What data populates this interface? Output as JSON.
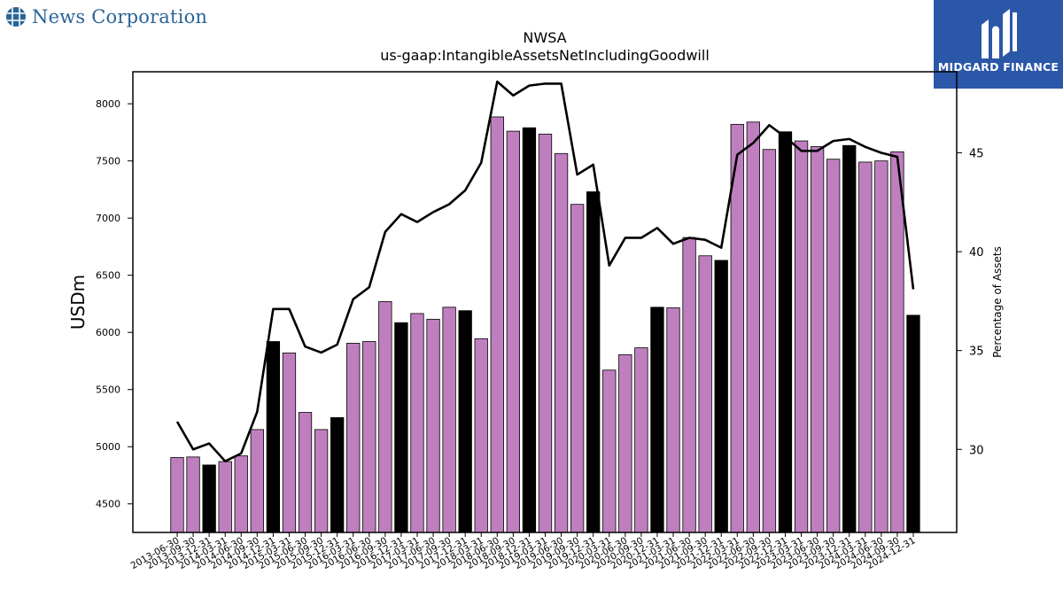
{
  "header": {
    "left_logo_text": "News Corporation",
    "left_logo_icon": "globe-grid-icon",
    "right_logo_text": "MIDGARD FINANCE",
    "right_logo_icon": "midgard-monogram-icon"
  },
  "chart_data": {
    "type": "bar",
    "title": "NWSA",
    "subtitle": "us-gaap:IntangibleAssetsNetIncludingGoodwill",
    "ylabel": "USDm",
    "y2label": "Percentage of Assets",
    "ylim": [
      4250,
      8280
    ],
    "y2lim": [
      25.8,
      49.1
    ],
    "yticks": [
      4500,
      5000,
      5500,
      6000,
      6500,
      7000,
      7500,
      8000
    ],
    "y2ticks": [
      30,
      35,
      40,
      45
    ],
    "categories": [
      "2013-06-30",
      "2013-09-30",
      "2013-12-31",
      "2014-03-31",
      "2014-06-30",
      "2014-09-30",
      "2014-12-31",
      "2015-03-31",
      "2015-06-30",
      "2015-09-30",
      "2015-12-31",
      "2016-03-31",
      "2016-06-30",
      "2016-09-30",
      "2016-12-31",
      "2017-03-31",
      "2017-06-30",
      "2017-09-30",
      "2017-12-31",
      "2018-03-31",
      "2018-06-30",
      "2018-09-30",
      "2018-12-31",
      "2019-03-31",
      "2019-06-30",
      "2019-09-30",
      "2019-12-31",
      "2020-03-31",
      "2020-06-30",
      "2020-09-30",
      "2020-12-31",
      "2021-03-31",
      "2021-06-30",
      "2021-09-30",
      "2021-12-31",
      "2022-03-31",
      "2022-06-30",
      "2022-09-30",
      "2022-12-31",
      "2023-03-31",
      "2023-06-30",
      "2023-09-30",
      "2023-12-31",
      "2024-03-31",
      "2024-06-30",
      "2024-09-30",
      "2024-12-31"
    ],
    "series": [
      {
        "values": [
          4905,
          4910,
          4840,
          4870,
          4920,
          5150,
          5920,
          5820,
          5300,
          5150,
          5255,
          5905,
          5920,
          6270,
          6085,
          6165,
          6115,
          6220,
          6190,
          5945,
          7885,
          7760,
          7790,
          7735,
          7565,
          7120,
          7230,
          5670,
          5805,
          5865,
          6220,
          6215,
          6830,
          6670,
          6630,
          7820,
          7840,
          7600,
          7755,
          7675,
          7625,
          7515,
          7635,
          7490,
          7500,
          7580,
          6150
        ],
        "highlight": [
          false,
          false,
          true,
          false,
          false,
          false,
          true,
          false,
          false,
          false,
          true,
          false,
          false,
          false,
          true,
          false,
          false,
          false,
          true,
          false,
          false,
          false,
          true,
          false,
          false,
          false,
          true,
          false,
          false,
          false,
          true,
          false,
          false,
          false,
          true,
          false,
          false,
          false,
          true,
          false,
          false,
          false,
          true,
          false,
          false,
          false,
          true
        ],
        "color": "#bf7fbf",
        "highlight_color": "#000000"
      },
      {
        "axis": "right",
        "type": "line",
        "color": "#000000",
        "values": [
          31.4,
          30.0,
          30.3,
          29.4,
          29.8,
          31.9,
          37.1,
          37.1,
          35.2,
          34.9,
          35.3,
          37.6,
          38.2,
          41.0,
          41.9,
          41.5,
          42.0,
          42.4,
          43.1,
          44.5,
          48.6,
          47.9,
          48.4,
          48.5,
          48.5,
          43.9,
          44.4,
          39.3,
          40.7,
          40.7,
          41.2,
          40.4,
          40.7,
          40.6,
          40.2,
          44.9,
          45.5,
          46.4,
          45.8,
          45.1,
          45.1,
          45.6,
          45.7,
          45.3,
          45.0,
          44.8,
          38.1
        ]
      }
    ]
  }
}
